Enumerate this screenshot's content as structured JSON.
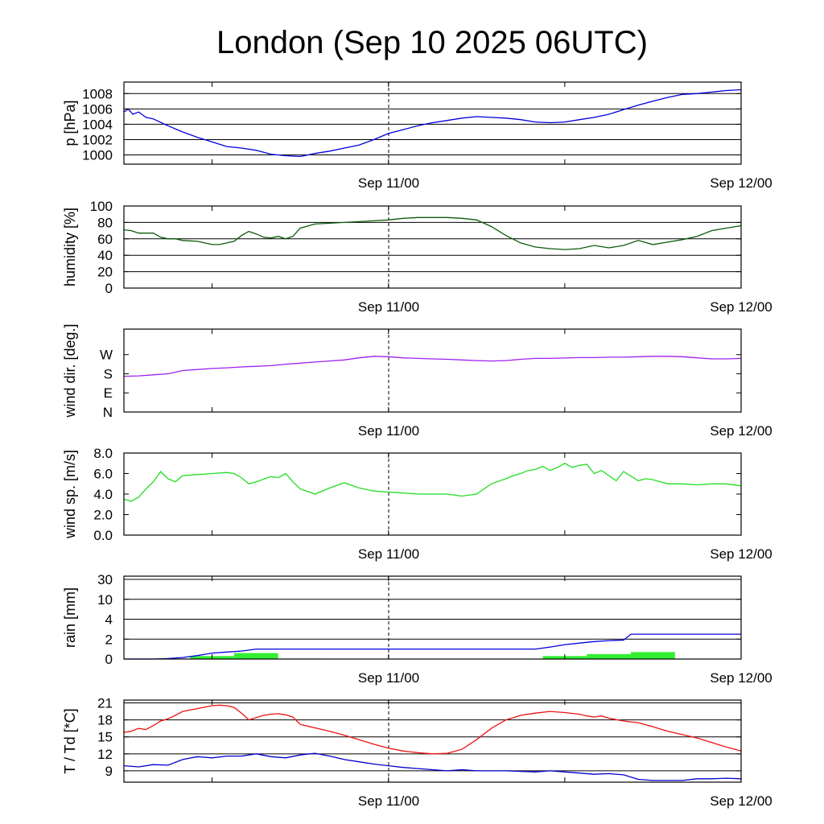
{
  "title": "London (Sep 10 2025 06UTC)",
  "x_tick_labels": [
    "Sep 11/00",
    "Sep 12/00"
  ],
  "colors": {
    "pressure": "#0000dd",
    "humidity": "#0b5a0b",
    "wind_dir": "#a020f0",
    "wind_speed": "#22dd22",
    "rain_cumulative": "#0000dd",
    "rain_bars": "#33ee33",
    "temperature": "#ee1111",
    "dewpoint": "#0000cc"
  },
  "chart_data": [
    {
      "type": "line",
      "id": "pressure",
      "ylabel": "p [hPa]",
      "unit": "hPa",
      "x_unit": "hours since Sep 10 06UTC",
      "xlim": [
        0,
        42
      ],
      "ylim": [
        998.8,
        1009.5
      ],
      "yticks": [
        1000,
        1002,
        1004,
        1006,
        1008
      ],
      "ytick_labels": [
        "1000",
        "1002",
        "1004",
        "1006",
        "1008"
      ],
      "grid": true,
      "series": [
        {
          "color_key": "pressure",
          "x": [
            0,
            0.3,
            0.6,
            1,
            1.5,
            2,
            3,
            4,
            5,
            6,
            7,
            8,
            9,
            10,
            11,
            12,
            13,
            14,
            15,
            16,
            17,
            18,
            19,
            20,
            21,
            22,
            23,
            24,
            25,
            26,
            27,
            28,
            29,
            30,
            31,
            32,
            33,
            34,
            35,
            36,
            37,
            38,
            39,
            40,
            41,
            42
          ],
          "y": [
            1005.6,
            1006.0,
            1005.3,
            1005.6,
            1004.9,
            1004.7,
            1003.8,
            1003.0,
            1002.3,
            1001.7,
            1001.1,
            1000.9,
            1000.6,
            1000.1,
            999.9,
            999.8,
            1000.2,
            1000.5,
            1000.9,
            1001.3,
            1002.0,
            1002.8,
            1003.3,
            1003.8,
            1004.2,
            1004.5,
            1004.8,
            1005.0,
            1004.9,
            1004.8,
            1004.6,
            1004.3,
            1004.2,
            1004.3,
            1004.6,
            1004.9,
            1005.3,
            1005.9,
            1006.5,
            1007.0,
            1007.5,
            1007.9,
            1008.0,
            1008.2,
            1008.4,
            1008.5
          ]
        }
      ]
    },
    {
      "type": "line",
      "id": "humidity",
      "ylabel": "humidity [%]",
      "unit": "%",
      "x_unit": "hours since Sep 10 06UTC",
      "xlim": [
        0,
        42
      ],
      "ylim": [
        0,
        100
      ],
      "yticks": [
        0,
        20,
        40,
        60,
        80,
        100
      ],
      "ytick_labels": [
        "0",
        "20",
        "40",
        "60",
        "80",
        "100"
      ],
      "grid": true,
      "series": [
        {
          "color_key": "humidity",
          "x": [
            0,
            0.5,
            1,
            1.5,
            2,
            2.5,
            3,
            3.5,
            4,
            5,
            5.5,
            6,
            6.5,
            7,
            7.5,
            8,
            8.5,
            9,
            9.5,
            10,
            10.5,
            11,
            11.5,
            12,
            13,
            14,
            15,
            16,
            17,
            18,
            19,
            20,
            21,
            22,
            23,
            24,
            25,
            26,
            27,
            28,
            29,
            30,
            31,
            32,
            33,
            34,
            35,
            36,
            37,
            38,
            39,
            40,
            41,
            42
          ],
          "y": [
            71,
            70,
            67,
            67,
            67,
            62,
            60,
            60,
            58,
            57,
            55,
            53,
            53,
            55,
            57,
            64,
            69,
            66,
            62,
            61,
            63,
            60,
            63,
            73,
            78,
            79,
            80,
            81,
            82,
            83,
            85,
            86,
            86,
            86,
            85,
            83,
            75,
            64,
            55,
            50,
            48,
            47,
            48,
            52,
            49,
            52,
            58,
            53,
            56,
            59,
            63,
            70,
            73,
            76
          ]
        }
      ]
    },
    {
      "type": "line",
      "id": "wind_dir",
      "ylabel": "wind dir. [deg.]",
      "unit": "deg",
      "x_unit": "hours since Sep 10 06UTC",
      "xlim": [
        0,
        42
      ],
      "ylim": [
        0,
        390
      ],
      "yticks": [
        0,
        90,
        180,
        270
      ],
      "ytick_labels": [
        "N",
        "E",
        "S",
        "W"
      ],
      "grid": false,
      "series": [
        {
          "color_key": "wind_dir",
          "x": [
            0,
            1,
            2,
            3,
            4,
            5,
            6,
            7,
            8,
            9,
            10,
            11,
            12,
            13,
            14,
            15,
            16,
            17,
            18,
            19,
            20,
            21,
            22,
            23,
            24,
            25,
            26,
            27,
            28,
            29,
            30,
            31,
            32,
            33,
            34,
            35,
            36,
            37,
            38,
            39,
            40,
            41,
            42
          ],
          "y": [
            168,
            170,
            175,
            180,
            195,
            200,
            205,
            208,
            212,
            215,
            218,
            225,
            230,
            235,
            240,
            245,
            255,
            262,
            260,
            255,
            252,
            250,
            248,
            245,
            242,
            240,
            242,
            248,
            252,
            252,
            254,
            256,
            256,
            258,
            258,
            260,
            262,
            262,
            260,
            255,
            250,
            250,
            252
          ]
        }
      ]
    },
    {
      "type": "line",
      "id": "wind_speed",
      "ylabel": "wind sp. [m/s]",
      "unit": "m/s",
      "x_unit": "hours since Sep 10 06UTC",
      "xlim": [
        0,
        42
      ],
      "ylim": [
        0,
        8
      ],
      "yticks": [
        0,
        2,
        4,
        6,
        8
      ],
      "ytick_labels": [
        "0.0",
        "2.0",
        "4.0",
        "6.0",
        "8.0"
      ],
      "grid": false,
      "series": [
        {
          "color_key": "wind_speed",
          "x": [
            0,
            0.5,
            1,
            1.5,
            2,
            2.5,
            3,
            3.5,
            4,
            5,
            6,
            7,
            7.5,
            8,
            8.5,
            9,
            10,
            10.5,
            11,
            11.5,
            12,
            13,
            14,
            15,
            16,
            17,
            18,
            19,
            20,
            21,
            22,
            23,
            24,
            25,
            26,
            26.5,
            27,
            27.5,
            28,
            28.5,
            29,
            29.5,
            30,
            30.5,
            31,
            31.5,
            32,
            32.5,
            33,
            33.5,
            34,
            35,
            35.5,
            36,
            37,
            38,
            39,
            40,
            41,
            42
          ],
          "y": [
            3.5,
            3.3,
            3.7,
            4.5,
            5.2,
            6.2,
            5.5,
            5.2,
            5.8,
            5.9,
            6.0,
            6.1,
            6.0,
            5.6,
            5.0,
            5.2,
            5.7,
            5.6,
            6.0,
            5.2,
            4.5,
            4.0,
            4.6,
            5.1,
            4.6,
            4.3,
            4.2,
            4.1,
            4.0,
            4.0,
            4.0,
            3.8,
            4.0,
            5.0,
            5.5,
            5.8,
            6.0,
            6.3,
            6.4,
            6.7,
            6.3,
            6.6,
            7.0,
            6.6,
            6.8,
            6.9,
            6.0,
            6.3,
            5.8,
            5.3,
            6.2,
            5.3,
            5.5,
            5.4,
            5.0,
            5.0,
            4.9,
            5.0,
            5.0,
            4.8
          ]
        }
      ]
    },
    {
      "type": "bar+line",
      "id": "rain",
      "ylabel": "rain [mm]",
      "unit": "mm",
      "x_unit": "hours since Sep 10 06UTC",
      "xlim": [
        0,
        42
      ],
      "yticks": [
        0,
        2,
        4,
        10,
        30
      ],
      "ytick_labels": [
        "0",
        "2",
        "4",
        "10",
        "30"
      ],
      "grid": true,
      "bars": [
        {
          "x0": 4.5,
          "x1": 7.5,
          "value": 0.3
        },
        {
          "x0": 7.5,
          "x1": 10.5,
          "value": 0.6
        },
        {
          "x0": 10.5,
          "x1": 13.5,
          "value": 0.05
        },
        {
          "x0": 28.5,
          "x1": 31.5,
          "value": 0.3
        },
        {
          "x0": 31.5,
          "x1": 34.5,
          "value": 0.5
        },
        {
          "x0": 34.5,
          "x1": 37.5,
          "value": 0.7
        }
      ],
      "series": [
        {
          "color_key": "rain_cumulative",
          "x": [
            0,
            2,
            3,
            4,
            5,
            6,
            7,
            8,
            9,
            12,
            18,
            24,
            28,
            29,
            30,
            31,
            32,
            33,
            34,
            34.5,
            35,
            36,
            42
          ],
          "y": [
            0,
            0,
            0.05,
            0.15,
            0.35,
            0.6,
            0.7,
            0.8,
            1.0,
            1.0,
            1.0,
            1.0,
            1.0,
            1.2,
            1.45,
            1.6,
            1.75,
            1.85,
            1.9,
            2.5,
            2.5,
            2.5,
            2.5
          ]
        }
      ]
    },
    {
      "type": "line",
      "id": "temperature",
      "ylabel": "T / Td [*C]",
      "unit": "*C",
      "x_unit": "hours since Sep 10 06UTC",
      "xlim": [
        0,
        42
      ],
      "ylim": [
        7,
        21.5
      ],
      "yticks": [
        9,
        12,
        15,
        18,
        21
      ],
      "ytick_labels": [
        "9",
        "12",
        "15",
        "18",
        "21"
      ],
      "grid": true,
      "series": [
        {
          "name": "T",
          "color_key": "temperature",
          "x": [
            0,
            0.5,
            1,
            1.5,
            2,
            2.5,
            3,
            3.5,
            4,
            5,
            6,
            6.5,
            7,
            7.5,
            8,
            8.5,
            9,
            9.5,
            10,
            10.5,
            11,
            11.5,
            12,
            13,
            14,
            15,
            16,
            17,
            18,
            19,
            20,
            21,
            22,
            23,
            24,
            25,
            26,
            27,
            28,
            29,
            30,
            31,
            31.5,
            32,
            32.5,
            33,
            34,
            35,
            36,
            37,
            38,
            39,
            40,
            41,
            42
          ],
          "y": [
            15.8,
            16.0,
            16.5,
            16.3,
            17.0,
            17.8,
            18.2,
            18.8,
            19.5,
            20.0,
            20.5,
            20.6,
            20.5,
            20.2,
            19.2,
            18.0,
            18.4,
            18.8,
            19.0,
            19.1,
            18.9,
            18.5,
            17.2,
            16.6,
            16.0,
            15.3,
            14.5,
            13.7,
            13.0,
            12.5,
            12.2,
            12.0,
            12.1,
            12.8,
            14.5,
            16.5,
            18.0,
            18.8,
            19.2,
            19.5,
            19.3,
            19.0,
            18.7,
            18.5,
            18.7,
            18.3,
            17.8,
            17.5,
            16.8,
            16.0,
            15.4,
            14.8,
            14.0,
            13.2,
            12.5
          ]
        },
        {
          "name": "Td",
          "color_key": "dewpoint",
          "x": [
            0,
            1,
            2,
            3,
            4,
            5,
            6,
            7,
            8,
            9,
            10,
            11,
            12,
            13,
            14,
            15,
            16,
            17,
            18,
            19,
            20,
            21,
            22,
            23,
            24,
            25,
            26,
            27,
            28,
            29,
            30,
            31,
            32,
            33,
            34,
            35,
            36,
            37,
            38,
            39,
            40,
            41,
            42
          ],
          "y": [
            9.9,
            9.7,
            10.1,
            10.0,
            11.0,
            11.5,
            11.3,
            11.6,
            11.6,
            12.0,
            11.5,
            11.3,
            11.8,
            12.1,
            11.6,
            11.0,
            10.6,
            10.2,
            9.9,
            9.6,
            9.4,
            9.2,
            9.0,
            9.2,
            9.0,
            9.0,
            9.0,
            8.9,
            8.8,
            9.0,
            8.8,
            8.6,
            8.4,
            8.5,
            8.3,
            7.5,
            7.3,
            7.3,
            7.3,
            7.6,
            7.6,
            7.7,
            7.6
          ]
        }
      ]
    }
  ]
}
